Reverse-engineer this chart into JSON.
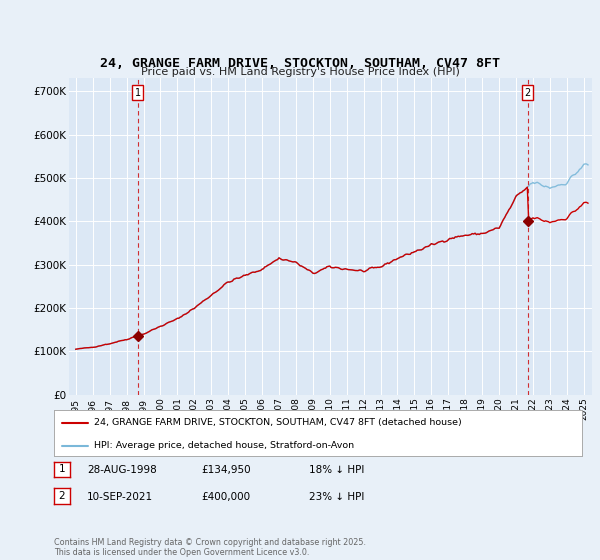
{
  "title": "24, GRANGE FARM DRIVE, STOCKTON, SOUTHAM, CV47 8FT",
  "subtitle": "Price paid vs. HM Land Registry's House Price Index (HPI)",
  "background_color": "#e8f0f8",
  "plot_bg_color": "#dce8f5",
  "grid_color": "#ffffff",
  "ylim": [
    0,
    730000
  ],
  "yticks": [
    0,
    100000,
    200000,
    300000,
    400000,
    500000,
    600000,
    700000
  ],
  "ytick_labels": [
    "£0",
    "£100K",
    "£200K",
    "£300K",
    "£400K",
    "£500K",
    "£600K",
    "£700K"
  ],
  "hpi_color": "#7ab8d9",
  "price_color": "#cc0000",
  "marker_color": "#8b0000",
  "annotation_box_color": "#cc0000",
  "vline_color": "#cc0000",
  "p1_t": 1998.65,
  "p1_price": 134950,
  "p2_t": 2021.7,
  "p2_price": 400000,
  "legend_label_red": "24, GRANGE FARM DRIVE, STOCKTON, SOUTHAM, CV47 8FT (detached house)",
  "legend_label_blue": "HPI: Average price, detached house, Stratford-on-Avon",
  "note1_label": "1",
  "note1_date": "28-AUG-1998",
  "note1_price": "£134,950",
  "note1_change": "18% ↓ HPI",
  "note2_label": "2",
  "note2_date": "10-SEP-2021",
  "note2_price": "£400,000",
  "note2_change": "23% ↓ HPI",
  "footer": "Contains HM Land Registry data © Crown copyright and database right 2025.\nThis data is licensed under the Open Government Licence v3.0."
}
